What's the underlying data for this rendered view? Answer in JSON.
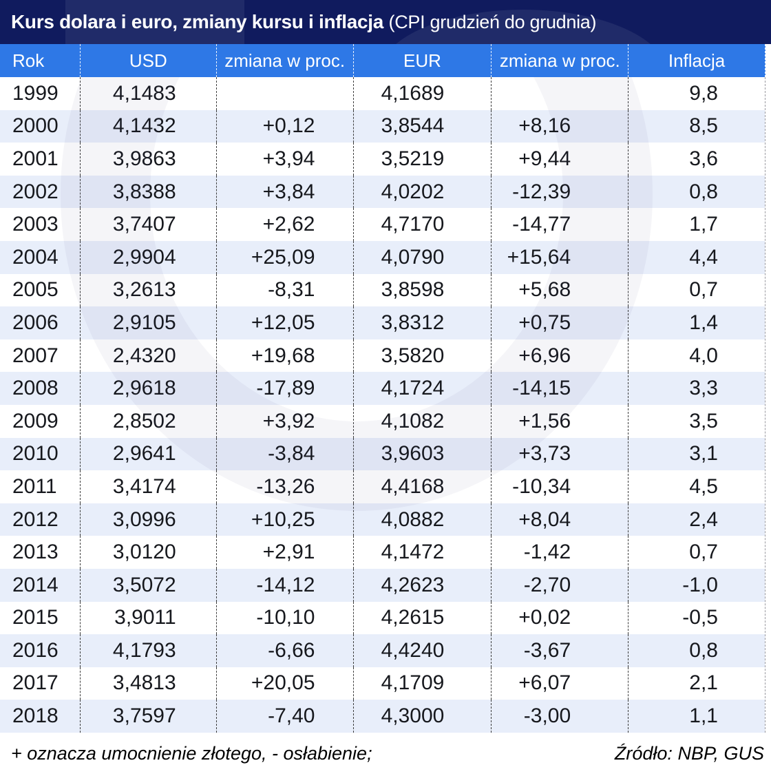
{
  "title": {
    "text": "Kurs dolara i euro, zmiany kursu i inflacja",
    "note": "(CPI grudzień do grudnia)"
  },
  "chart_data": {
    "type": "table",
    "title": "Kurs dolara i euro, zmiany kursu i inflacja (CPI grudzień do grudnia)",
    "columns": [
      "Rok",
      "USD",
      "zmiana w proc.",
      "EUR",
      "zmiana w proc.",
      "Inflacja"
    ],
    "rows": [
      [
        "1999",
        "4,1483",
        "",
        "4,1689",
        "",
        "9,8"
      ],
      [
        "2000",
        "4,1432",
        "+0,12",
        "3,8544",
        "+8,16",
        "8,5"
      ],
      [
        "2001",
        "3,9863",
        "+3,94",
        "3,5219",
        "+9,44",
        "3,6"
      ],
      [
        "2002",
        "3,8388",
        "+3,84",
        "4,0202",
        "-12,39",
        "0,8"
      ],
      [
        "2003",
        "3,7407",
        "+2,62",
        "4,7170",
        "-14,77",
        "1,7"
      ],
      [
        "2004",
        "2,9904",
        "+25,09",
        "4,0790",
        "+15,64",
        "4,4"
      ],
      [
        "2005",
        "3,2613",
        "-8,31",
        "3,8598",
        "+5,68",
        "0,7"
      ],
      [
        "2006",
        "2,9105",
        "+12,05",
        "3,8312",
        "+0,75",
        "1,4"
      ],
      [
        "2007",
        "2,4320",
        "+19,68",
        "3,5820",
        "+6,96",
        "4,0"
      ],
      [
        "2008",
        "2,9618",
        "-17,89",
        "4,1724",
        "-14,15",
        "3,3"
      ],
      [
        "2009",
        "2,8502",
        "+3,92",
        "4,1082",
        "+1,56",
        "3,5"
      ],
      [
        "2010",
        "2,9641",
        "-3,84",
        "3,9603",
        "+3,73",
        "3,1"
      ],
      [
        "2011",
        "3,4174",
        "-13,26",
        "4,4168",
        "-10,34",
        "4,5"
      ],
      [
        "2012",
        "3,0996",
        "+10,25",
        "4,0882",
        "+8,04",
        "2,4"
      ],
      [
        "2013",
        "3,0120",
        "+2,91",
        "4,1472",
        "-1,42",
        "0,7"
      ],
      [
        "2014",
        "3,5072",
        "-14,12",
        "4,2623",
        "-2,70",
        "-1,0"
      ],
      [
        "2015",
        "3,9011",
        "-10,10",
        "4,2615",
        "+0,02",
        "-0,5"
      ],
      [
        "2016",
        "4,1793",
        "-6,66",
        "4,4240",
        "-3,67",
        "0,8"
      ],
      [
        "2017",
        "3,4813",
        "+20,05",
        "4,1709",
        "+6,07",
        "2,1"
      ],
      [
        "2018",
        "3,7597",
        "-7,40",
        "4,3000",
        "-3,00",
        "1,1"
      ]
    ],
    "note": "+ oznacza umocnienie złotego, - osłabienie;",
    "source": "Źródło: NBP, GUS"
  },
  "colors": {
    "title_bg": "#101b5e",
    "header_bg": "#2e78e6",
    "row_alt_bg": "#e8eefa",
    "row_bg": "#ffffff",
    "text": "#16181d",
    "header_text": "#ffffff"
  }
}
